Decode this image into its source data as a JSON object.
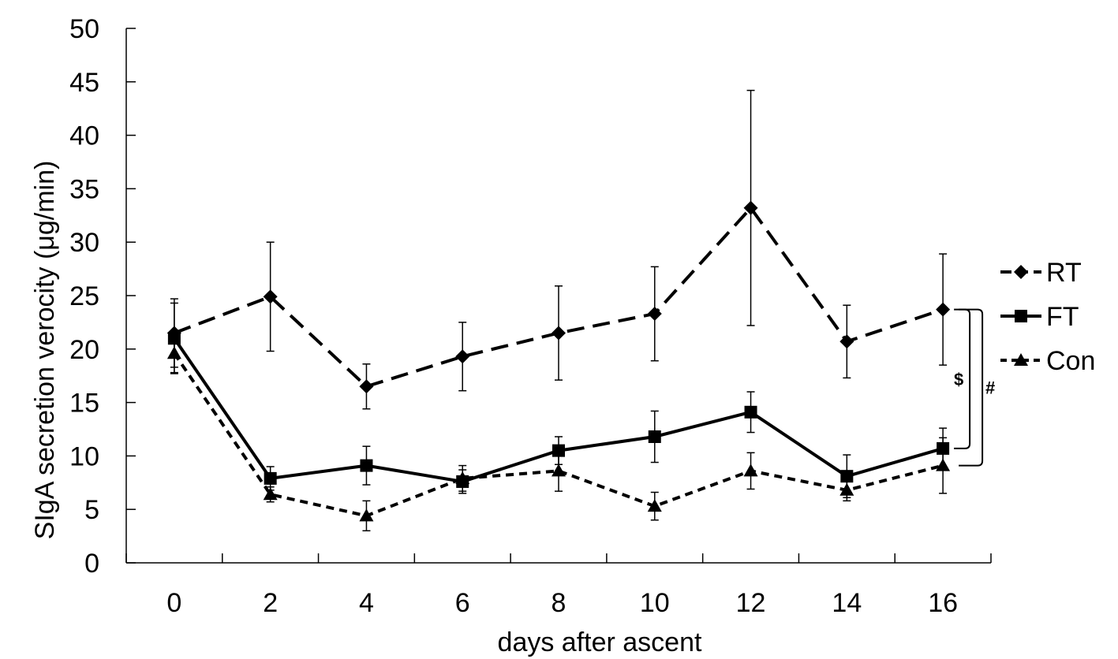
{
  "chart_data": {
    "type": "line",
    "title": "",
    "xlabel": "days after ascent",
    "ylabel": "SIgA secretion verocity (μg/min)",
    "x": [
      0,
      2,
      4,
      6,
      8,
      10,
      12,
      14,
      16
    ],
    "x_tick_labels": [
      "0",
      "2",
      "4",
      "6",
      "8",
      "10",
      "12",
      "14",
      "16"
    ],
    "y_tick_labels": [
      "0",
      "5",
      "10",
      "15",
      "20",
      "25",
      "30",
      "35",
      "40",
      "45",
      "50"
    ],
    "ylim": [
      0,
      50
    ],
    "grid": false,
    "legend_position": "right",
    "series": [
      {
        "name": "RT",
        "marker": "diamond",
        "line_style": "long-dash",
        "values": [
          21.5,
          24.9,
          16.5,
          19.3,
          21.5,
          23.3,
          33.2,
          20.7,
          23.7
        ],
        "errors": [
          3.2,
          5.1,
          2.1,
          3.2,
          4.4,
          4.4,
          11.0,
          3.4,
          5.2
        ]
      },
      {
        "name": "FT",
        "marker": "square",
        "line_style": "solid",
        "values": [
          21.0,
          7.9,
          9.1,
          7.6,
          10.5,
          11.8,
          14.1,
          8.1,
          10.7
        ],
        "errors": [
          3.3,
          1.1,
          1.8,
          1.1,
          1.3,
          2.4,
          1.9,
          2.0,
          1.9
        ]
      },
      {
        "name": "Con",
        "marker": "triangle",
        "line_style": "short-dash",
        "values": [
          19.6,
          6.4,
          4.4,
          7.9,
          8.6,
          5.3,
          8.6,
          6.8,
          9.1
        ],
        "errors": [
          1.8,
          0.7,
          1.4,
          1.2,
          1.9,
          1.3,
          1.7,
          1.0,
          2.6
        ]
      }
    ],
    "annotations": [
      {
        "text": "$",
        "from_series": "RT",
        "to_series": "FT",
        "at_x": 16
      },
      {
        "text": "#",
        "from_series": "RT",
        "to_series": "Con",
        "at_x": 16
      }
    ]
  }
}
